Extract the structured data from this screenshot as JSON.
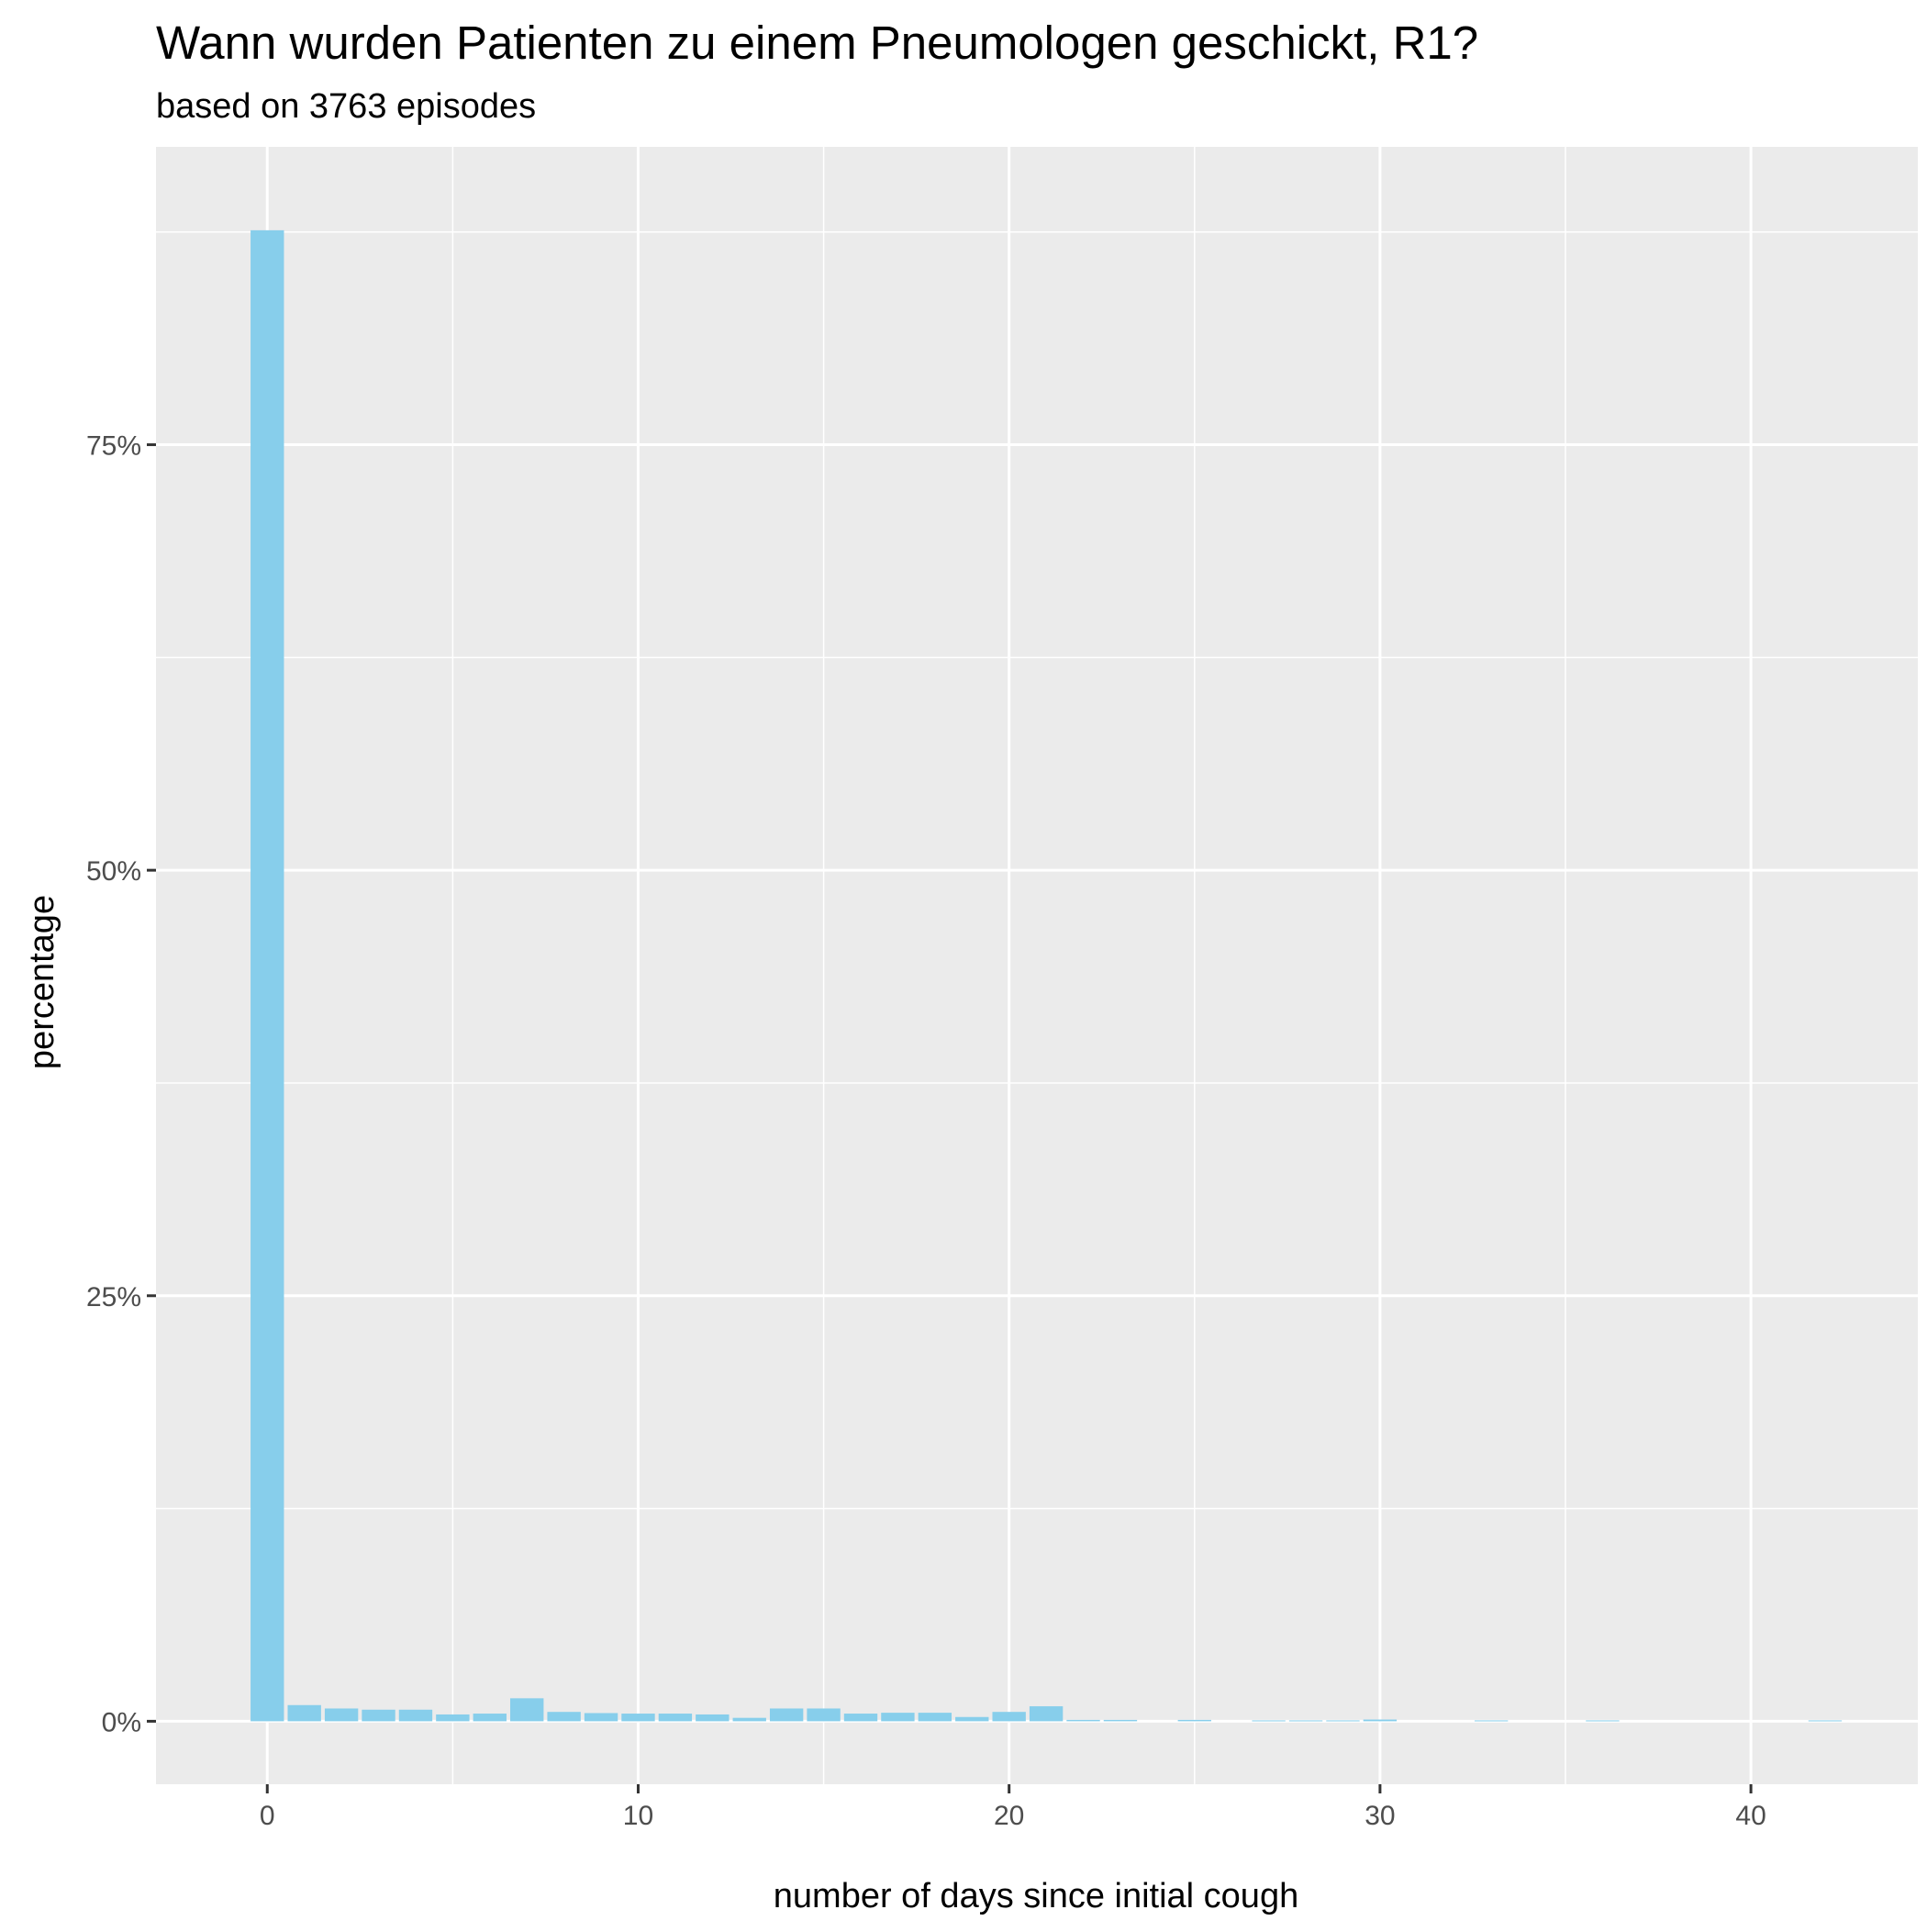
{
  "chart_data": {
    "type": "bar",
    "title": "Wann wurden Patienten zu einem Pneumologen geschickt, R1?",
    "subtitle": "based on 3763 episodes",
    "xlabel": "number of days since initial cough",
    "ylabel": "percentage",
    "xlim": [
      -3.0,
      44.5
    ],
    "ylim": [
      -0.037,
      0.925
    ],
    "x_ticks": [
      0,
      10,
      20,
      30,
      40
    ],
    "x_tick_labels": [
      "0",
      "10",
      "20",
      "30",
      "40"
    ],
    "y_ticks": [
      0,
      0.25,
      0.5,
      0.75
    ],
    "y_tick_labels": [
      "0%",
      "25%",
      "50%",
      "75%"
    ],
    "grid": true,
    "legend": "none",
    "bar_color": "#87CEEB",
    "panel_background": "#EBEBEB",
    "grid_color": "#FFFFFF",
    "x": [
      0,
      1,
      2,
      3,
      4,
      5,
      6,
      7,
      8,
      9,
      10,
      11,
      12,
      13,
      14,
      15,
      16,
      17,
      18,
      19,
      20,
      21,
      22,
      23,
      25,
      27,
      28,
      29,
      30,
      33,
      36,
      42
    ],
    "values": [
      0.876,
      0.0095,
      0.0075,
      0.0068,
      0.0068,
      0.004,
      0.0045,
      0.0135,
      0.0055,
      0.0048,
      0.0045,
      0.0045,
      0.004,
      0.002,
      0.0075,
      0.0075,
      0.0045,
      0.005,
      0.005,
      0.0025,
      0.0055,
      0.0088,
      0.0008,
      0.0008,
      0.0008,
      0.0005,
      0.0005,
      0.0005,
      0.001,
      0.0005,
      0.0005,
      0.0005
    ]
  }
}
